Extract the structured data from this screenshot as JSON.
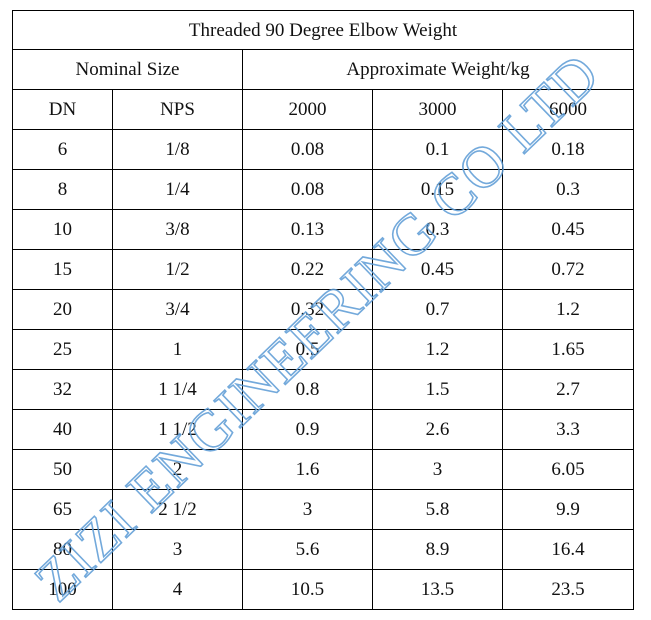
{
  "table": {
    "title": "Threaded 90 Degree Elbow Weight",
    "group_headers": {
      "nominal_size": "Nominal Size",
      "approx_weight": "Approximate Weight/kg"
    },
    "column_headers": [
      "DN",
      "NPS",
      "2000",
      "3000",
      "6000"
    ],
    "rows": [
      [
        "6",
        "1/8",
        "0.08",
        "0.1",
        "0.18"
      ],
      [
        "8",
        "1/4",
        "0.08",
        "0.15",
        "0.3"
      ],
      [
        "10",
        "3/8",
        "0.13",
        "0.3",
        "0.45"
      ],
      [
        "15",
        "1/2",
        "0.22",
        "0.45",
        "0.72"
      ],
      [
        "20",
        "3/4",
        "0.32",
        "0.7",
        "1.2"
      ],
      [
        "25",
        "1",
        "0.5",
        "1.2",
        "1.65"
      ],
      [
        "32",
        "1 1/4",
        "0.8",
        "1.5",
        "2.7"
      ],
      [
        "40",
        "1 1/2",
        "0.9",
        "2.6",
        "3.3"
      ],
      [
        "50",
        "2",
        "1.6",
        "3",
        "6.05"
      ],
      [
        "65",
        "2 1/2",
        "3",
        "5.8",
        "9.9"
      ],
      [
        "80",
        "3",
        "5.6",
        "8.9",
        "16.4"
      ],
      [
        "100",
        "4",
        "10.5",
        "13.5",
        "23.5"
      ]
    ]
  },
  "watermark": {
    "text": "ZIZI ENGINEERING CO LTD",
    "color": "#5b9bd5"
  }
}
